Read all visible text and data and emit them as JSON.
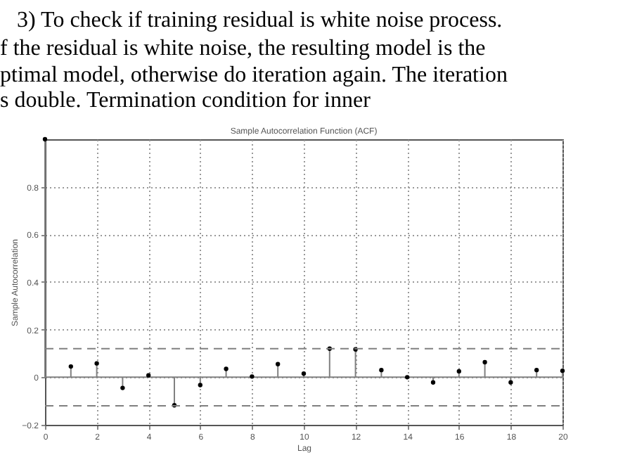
{
  "chart_data": {
    "type": "lollipop",
    "title": "Sample Autocorrelation Function (ACF)",
    "xlabel": "Lag",
    "ylabel": "Sample Autocorrelation",
    "annotations": [
      "3) To check if training residual is white noise process.",
      "f the residual is white noise, the resulting model is the",
      "ptimal model, otherwise do iteration again. The iteration",
      "s double. Termination condition for inner"
    ],
    "x": [
      0,
      1,
      2,
      3,
      4,
      5,
      6,
      7,
      8,
      9,
      10,
      11,
      12,
      13,
      14,
      15,
      16,
      17,
      18,
      19,
      20
    ],
    "series": [
      {
        "color": "#000000",
        "values": [
          1,
          0.045,
          0.058,
          -0.045,
          0.008,
          -0.118,
          -0.033,
          0.035,
          0.003,
          0.055,
          0.015,
          0.12,
          0.117,
          0.03,
          0.0,
          -0.022,
          0.025,
          0.063,
          -0.022,
          0.03,
          0.027
        ]
      }
    ],
    "xlim": [
      0,
      20
    ],
    "xticks": [
      0,
      2,
      4,
      6,
      8,
      10,
      12,
      14,
      16,
      18,
      20
    ],
    "ylim": [
      -0.2,
      1
    ],
    "yticks": [
      -0.2,
      0,
      0.2,
      0.4,
      0.6,
      0.8
    ],
    "ref_lines": [
      {
        "axis": "y",
        "value": 0.12,
        "line_style": "dashed",
        "color": "#808080"
      },
      {
        "axis": "y",
        "value": -0.12,
        "line_style": "dashed",
        "color": "#808080"
      }
    ],
    "grid": true,
    "marker": "circle"
  }
}
